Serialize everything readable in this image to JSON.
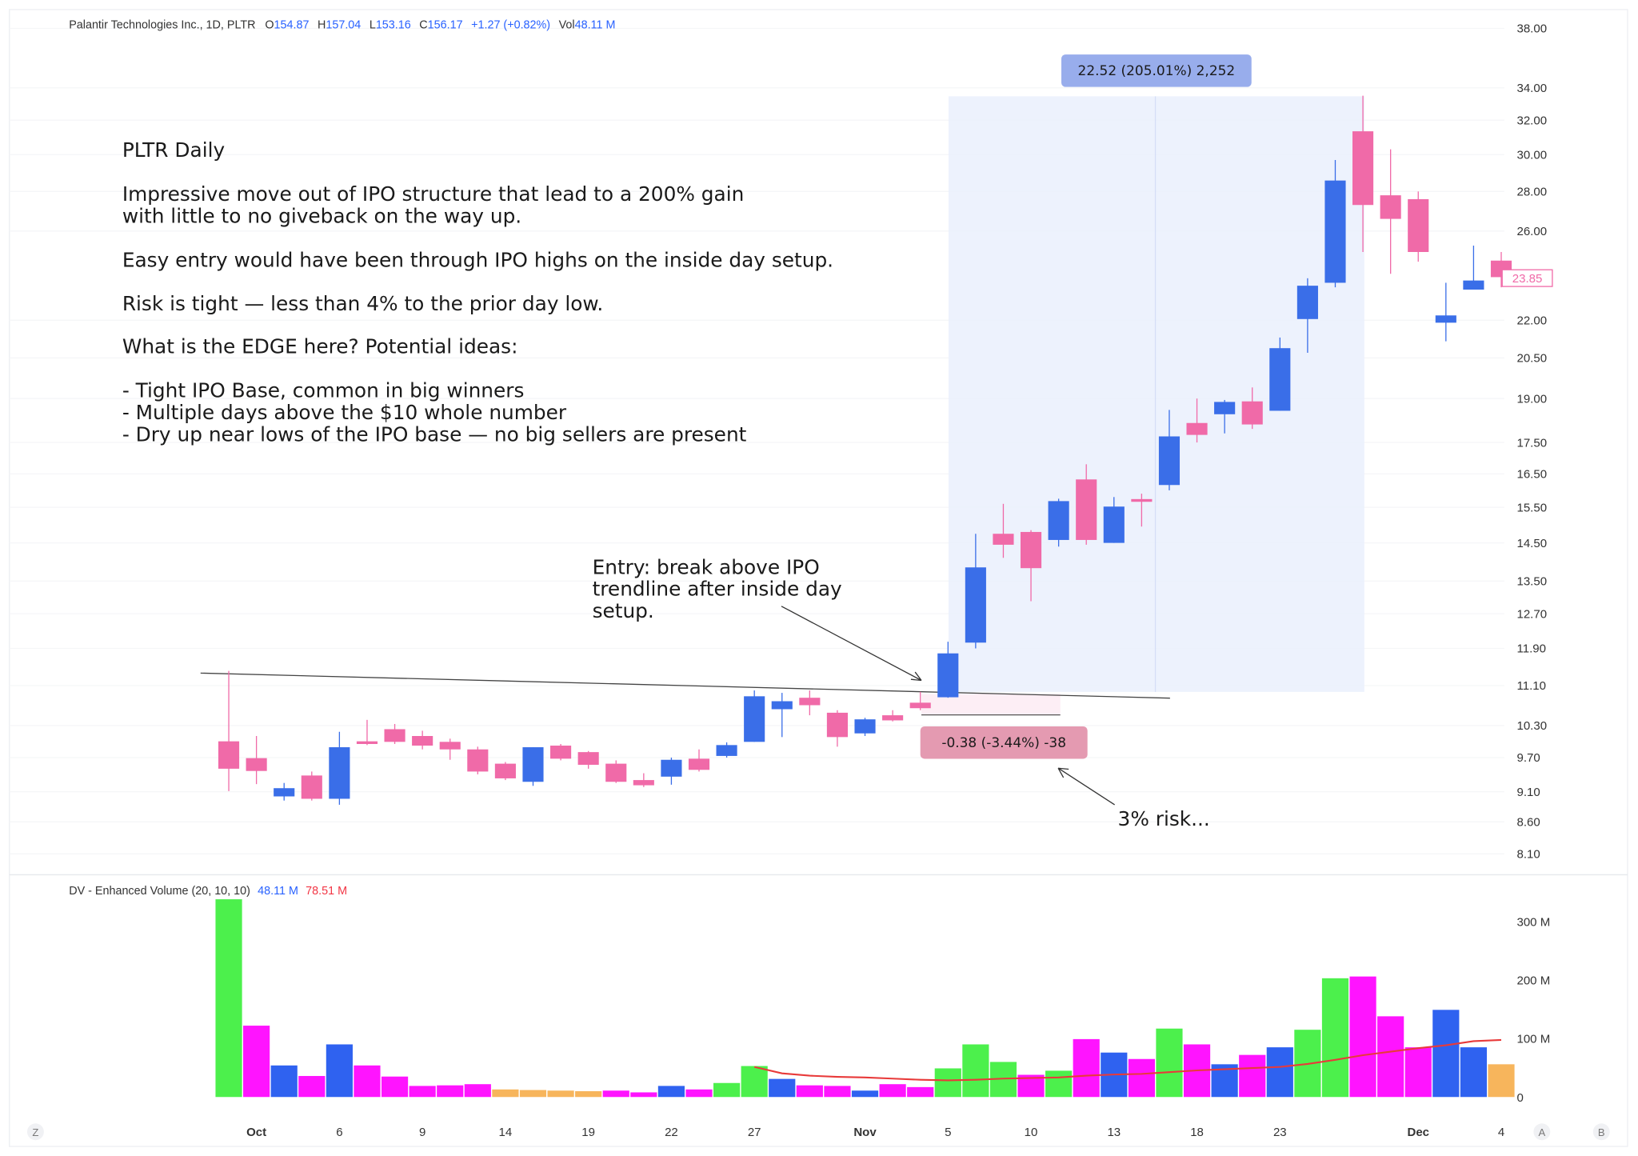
{
  "header": {
    "symbol_title": "Palantir Technologies Inc., 1D, PLTR",
    "open_label": "O",
    "open": "154.87",
    "high_label": "H",
    "high": "157.04",
    "low_label": "L",
    "low": "153.16",
    "close_label": "C",
    "close": "156.17",
    "change": "+1.27 (+0.82%)",
    "vol_label": "Vol",
    "vol": "48.11 M"
  },
  "colors": {
    "up": "#3a6ee8",
    "down": "#f06aa8",
    "accent": "#2962ff",
    "vol_green": "#4cf04c",
    "vol_magenta": "#ff14ff",
    "vol_blue": "#2f62f0",
    "vol_orange": "#f7b55c",
    "ma": "#e83a3a"
  },
  "notes": {
    "title": "PLTR Daily",
    "lines": [
      "Impressive move out of IPO structure that lead to a 200% gain",
      "with little to no giveback on the way up.",
      "Easy entry would have been through IPO highs on the inside day setup.",
      "Risk is tight — less than 4% to the prior day low.",
      "What is the EDGE here? Potential ideas:",
      "- Tight IPO Base, common in big winners",
      "- Multiple days above the $10 whole number",
      "- Dry up near lows of the IPO base — no big sellers are present"
    ],
    "entry": [
      "Entry: break above IPO",
      "trendline after inside day",
      "setup."
    ],
    "risk": "3% risk..."
  },
  "measures": {
    "gain_label": "22.52 (205.01%) 2,252",
    "risk_label": "-0.38 (-3.44%) -38"
  },
  "price_axis": {
    "ticks": [
      "38.00",
      "34.00",
      "32.00",
      "30.00",
      "28.00",
      "26.00",
      "22.00",
      "20.50",
      "19.00",
      "17.50",
      "16.50",
      "15.50",
      "14.50",
      "13.50",
      "12.70",
      "11.90",
      "11.10",
      "10.30",
      "9.70",
      "9.10",
      "8.60",
      "8.10"
    ],
    "current_price": "23.85"
  },
  "volume_panel": {
    "title": "DV - Enhanced Volume (20, 10, 10)",
    "value1": "48.11 M",
    "value2": "78.51 M",
    "ticks": [
      "300 M",
      "200 M",
      "100 M",
      "0"
    ]
  },
  "time_axis": {
    "labels": [
      {
        "text": "Oct",
        "idx": 1,
        "bold": true
      },
      {
        "text": "6",
        "idx": 4
      },
      {
        "text": "9",
        "idx": 7
      },
      {
        "text": "14",
        "idx": 10
      },
      {
        "text": "19",
        "idx": 13
      },
      {
        "text": "22",
        "idx": 16
      },
      {
        "text": "27",
        "idx": 19
      },
      {
        "text": "Nov",
        "idx": 23,
        "bold": true
      },
      {
        "text": "5",
        "idx": 26
      },
      {
        "text": "10",
        "idx": 29
      },
      {
        "text": "13",
        "idx": 32
      },
      {
        "text": "18",
        "idx": 35
      },
      {
        "text": "23",
        "idx": 38
      },
      {
        "text": "Dec",
        "idx": 43,
        "bold": true
      },
      {
        "text": "4",
        "idx": 46
      }
    ]
  },
  "corner_buttons": {
    "left": "Z",
    "auto": "A",
    "right": "B"
  },
  "chart_data": {
    "type": "candlestick",
    "title": "Palantir Technologies Inc., 1D, PLTR",
    "y_scale": "log",
    "ylim": [
      8.1,
      38
    ],
    "ohlc": [
      [
        10.0,
        11.41,
        9.11,
        9.5
      ],
      [
        9.69,
        10.1,
        9.23,
        9.46
      ],
      [
        9.02,
        9.25,
        8.95,
        9.16
      ],
      [
        9.38,
        9.45,
        8.95,
        8.98
      ],
      [
        8.98,
        10.18,
        8.88,
        9.89
      ],
      [
        10.0,
        10.41,
        9.93,
        9.95
      ],
      [
        10.23,
        10.33,
        9.95,
        9.99
      ],
      [
        10.1,
        10.2,
        9.85,
        9.92
      ],
      [
        9.99,
        10.05,
        9.66,
        9.85
      ],
      [
        9.85,
        9.9,
        9.4,
        9.45
      ],
      [
        9.59,
        9.62,
        9.3,
        9.33
      ],
      [
        9.27,
        9.89,
        9.2,
        9.89
      ],
      [
        9.92,
        9.95,
        9.65,
        9.68
      ],
      [
        9.8,
        9.82,
        9.5,
        9.57
      ],
      [
        9.59,
        9.65,
        9.25,
        9.27
      ],
      [
        9.3,
        9.42,
        9.18,
        9.21
      ],
      [
        9.36,
        9.7,
        9.22,
        9.66
      ],
      [
        9.68,
        9.85,
        9.45,
        9.48
      ],
      [
        9.73,
        9.98,
        9.7,
        9.93
      ],
      [
        9.99,
        11.0,
        9.99,
        10.88
      ],
      [
        10.62,
        10.95,
        10.08,
        10.78
      ],
      [
        10.85,
        11.0,
        10.5,
        10.7
      ],
      [
        10.55,
        10.6,
        9.9,
        10.08
      ],
      [
        10.15,
        10.45,
        10.1,
        10.42
      ],
      [
        10.5,
        10.6,
        10.38,
        10.4
      ],
      [
        10.75,
        10.97,
        10.6,
        10.64
      ],
      [
        10.86,
        12.05,
        10.85,
        11.79
      ],
      [
        12.03,
        14.75,
        11.9,
        13.85
      ],
      [
        14.75,
        15.6,
        14.1,
        14.45
      ],
      [
        14.8,
        14.85,
        13.0,
        13.83
      ],
      [
        14.58,
        15.75,
        14.4,
        15.68
      ],
      [
        16.33,
        16.8,
        14.45,
        14.58
      ],
      [
        14.5,
        15.8,
        14.5,
        15.52
      ],
      [
        15.74,
        15.9,
        14.95,
        15.66
      ],
      [
        16.16,
        18.6,
        16.0,
        17.7
      ],
      [
        18.15,
        19.0,
        17.5,
        17.75
      ],
      [
        18.45,
        18.95,
        17.8,
        18.88
      ],
      [
        18.9,
        19.4,
        17.95,
        18.1
      ],
      [
        18.57,
        21.3,
        18.57,
        20.88
      ],
      [
        22.05,
        23.8,
        20.7,
        23.47
      ],
      [
        23.6,
        29.7,
        23.4,
        28.58
      ],
      [
        31.34,
        33.5,
        25.0,
        27.3
      ],
      [
        27.8,
        30.3,
        24.0,
        26.6
      ],
      [
        27.6,
        28.0,
        24.55,
        25.0
      ],
      [
        21.9,
        23.6,
        21.15,
        22.2
      ],
      [
        23.3,
        25.3,
        23.3,
        23.7
      ],
      [
        24.6,
        25.0,
        23.4,
        23.85
      ]
    ],
    "volume_millions": [
      339,
      123,
      55,
      37,
      91,
      55,
      36,
      20,
      21,
      23,
      14,
      13,
      12,
      11,
      12,
      9,
      20,
      14,
      25,
      54,
      32,
      21,
      20,
      12,
      23,
      18,
      50,
      91,
      61,
      39,
      46,
      100,
      77,
      66,
      118,
      91,
      57,
      73,
      86,
      116,
      204,
      207,
      139,
      86,
      150,
      86,
      57
    ],
    "volume_colors": [
      "g",
      "m",
      "b",
      "m",
      "b",
      "m",
      "m",
      "m",
      "m",
      "m",
      "o",
      "o",
      "o",
      "o",
      "m",
      "m",
      "b",
      "m",
      "g",
      "g",
      "b",
      "m",
      "m",
      "b",
      "m",
      "m",
      "g",
      "g",
      "g",
      "m",
      "g",
      "m",
      "b",
      "m",
      "g",
      "m",
      "b",
      "m",
      "b",
      "g",
      "g",
      "m",
      "m",
      "m",
      "b",
      "b",
      "o"
    ],
    "volume_ma_start_index": 19,
    "volume_ma_millions": [
      52,
      41,
      37,
      35,
      34,
      32,
      30,
      29,
      30,
      32,
      33,
      34,
      37,
      39,
      40,
      43,
      46,
      48,
      50,
      52,
      57,
      64,
      72,
      78,
      84,
      89,
      96,
      98
    ],
    "volume_ylim": [
      0,
      340
    ]
  }
}
